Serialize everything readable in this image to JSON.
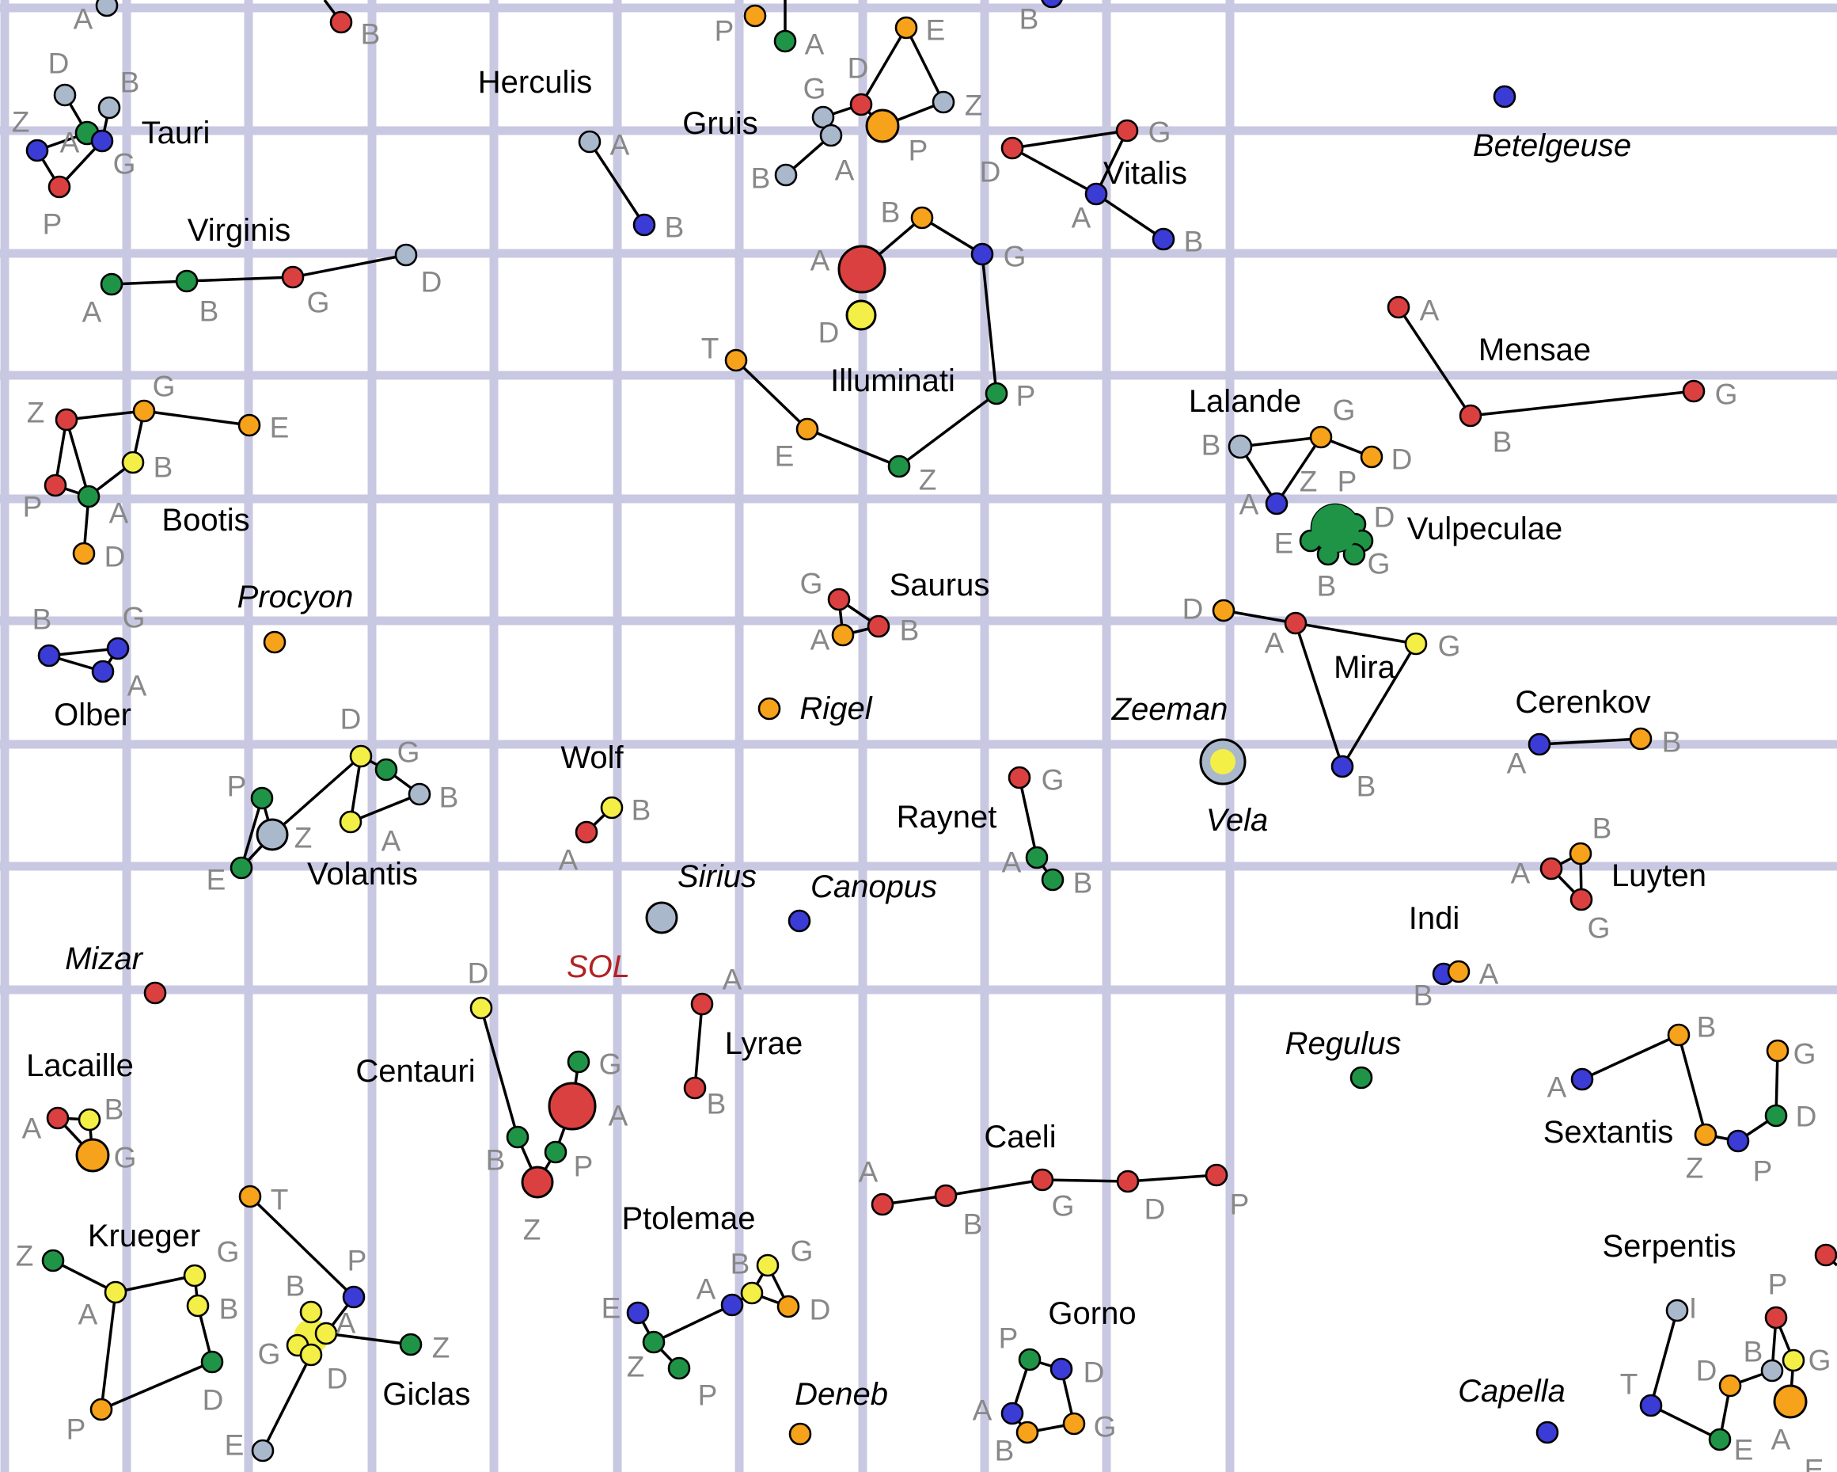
{
  "colors": {
    "red": "#db4040",
    "green": "#1f9447",
    "blue": "#3b3bd6",
    "orange": "#f7a21b",
    "yellow": "#f3ef47",
    "gray": "#aab8cc",
    "grid": "#c8c8e2",
    "home_label": "#b22222"
  },
  "home_system": "SOL",
  "named_stars": [
    "Betelgeuse",
    "Procyon",
    "Rigel",
    "Zeeman",
    "Vela",
    "Sirius",
    "Canopus",
    "Mizar",
    "Regulus",
    "Deneb",
    "Capella"
  ],
  "constellations": [
    {
      "name": "Tauri",
      "stars": [
        {
          "label": "D",
          "color": "gray"
        },
        {
          "label": "B",
          "color": "gray"
        },
        {
          "label": "Z",
          "color": "blue"
        },
        {
          "label": "A",
          "color": "green"
        },
        {
          "label": "G",
          "color": "blue"
        },
        {
          "label": "P",
          "color": "red"
        }
      ]
    },
    {
      "name": "Herculis",
      "stars": [
        {
          "label": "A",
          "color": "gray"
        },
        {
          "label": "B",
          "color": "blue"
        }
      ]
    },
    {
      "name": "Gruis",
      "stars": [
        {
          "label": "E",
          "color": "orange"
        },
        {
          "label": "D",
          "color": "red"
        },
        {
          "label": "Z",
          "color": "gray"
        },
        {
          "label": "G",
          "color": "gray"
        },
        {
          "label": "P",
          "color": "orange"
        },
        {
          "label": "A",
          "color": "gray"
        },
        {
          "label": "B",
          "color": "gray"
        }
      ]
    },
    {
      "name": "Vitalis",
      "stars": [
        {
          "label": "D",
          "color": "red"
        },
        {
          "label": "G",
          "color": "red"
        },
        {
          "label": "A",
          "color": "blue"
        },
        {
          "label": "B",
          "color": "blue"
        }
      ]
    },
    {
      "name": "Virginis",
      "stars": [
        {
          "label": "A",
          "color": "green"
        },
        {
          "label": "B",
          "color": "green"
        },
        {
          "label": "G",
          "color": "red"
        },
        {
          "label": "D",
          "color": "gray"
        }
      ]
    },
    {
      "name": "Illuminati",
      "stars": [
        {
          "label": "A",
          "color": "red"
        },
        {
          "label": "D",
          "color": "yellow"
        },
        {
          "label": "B",
          "color": "orange"
        },
        {
          "label": "G",
          "color": "blue"
        },
        {
          "label": "P",
          "color": "green"
        },
        {
          "label": "Z",
          "color": "green"
        },
        {
          "label": "E",
          "color": "orange"
        },
        {
          "label": "T",
          "color": "orange"
        }
      ]
    },
    {
      "name": "Mensae",
      "stars": [
        {
          "label": "A",
          "color": "red"
        },
        {
          "label": "B",
          "color": "red"
        },
        {
          "label": "G",
          "color": "red"
        }
      ]
    },
    {
      "name": "Bootis",
      "stars": [
        {
          "label": "Z",
          "color": "red"
        },
        {
          "label": "G",
          "color": "orange"
        },
        {
          "label": "E",
          "color": "orange"
        },
        {
          "label": "B",
          "color": "yellow"
        },
        {
          "label": "A",
          "color": "green"
        },
        {
          "label": "P",
          "color": "red"
        },
        {
          "label": "D",
          "color": "orange"
        }
      ]
    },
    {
      "name": "Lalande",
      "stars": [
        {
          "label": "B",
          "color": "gray"
        },
        {
          "label": "G",
          "color": "orange"
        },
        {
          "label": "D",
          "color": "orange"
        },
        {
          "label": "A",
          "color": "blue"
        }
      ]
    },
    {
      "name": "Vulpeculae",
      "stars": [
        {
          "label": "Z",
          "color": "green"
        },
        {
          "label": "P",
          "color": "green"
        },
        {
          "label": "D",
          "color": "green"
        },
        {
          "label": "G",
          "color": "green"
        },
        {
          "label": "B",
          "color": "green"
        },
        {
          "label": "E",
          "color": "green"
        }
      ]
    },
    {
      "name": "Olber",
      "stars": [
        {
          "label": "B",
          "color": "blue"
        },
        {
          "label": "G",
          "color": "blue"
        },
        {
          "label": "A",
          "color": "blue"
        }
      ]
    },
    {
      "name": "Saurus",
      "stars": [
        {
          "label": "G",
          "color": "red"
        },
        {
          "label": "A",
          "color": "orange"
        },
        {
          "label": "B",
          "color": "red"
        }
      ]
    },
    {
      "name": "Mira",
      "stars": [
        {
          "label": "D",
          "color": "orange"
        },
        {
          "label": "A",
          "color": "red"
        },
        {
          "label": "G",
          "color": "yellow"
        },
        {
          "label": "B",
          "color": "blue"
        }
      ]
    },
    {
      "name": "Cerenkov",
      "stars": [
        {
          "label": "A",
          "color": "blue"
        },
        {
          "label": "B",
          "color": "orange"
        }
      ]
    },
    {
      "name": "Volantis",
      "stars": [
        {
          "label": "D",
          "color": "yellow"
        },
        {
          "label": "G",
          "color": "green"
        },
        {
          "label": "B",
          "color": "gray"
        },
        {
          "label": "A",
          "color": "yellow"
        },
        {
          "label": "P",
          "color": "green"
        },
        {
          "label": "Z",
          "color": "gray"
        },
        {
          "label": "E",
          "color": "green"
        }
      ]
    },
    {
      "name": "Wolf",
      "stars": [
        {
          "label": "B",
          "color": "yellow"
        },
        {
          "label": "A",
          "color": "red"
        }
      ]
    },
    {
      "name": "Raynet",
      "stars": [
        {
          "label": "G",
          "color": "red"
        },
        {
          "label": "A",
          "color": "green"
        },
        {
          "label": "B",
          "color": "green"
        }
      ]
    },
    {
      "name": "Luyten",
      "stars": [
        {
          "label": "B",
          "color": "orange"
        },
        {
          "label": "A",
          "color": "red"
        },
        {
          "label": "G",
          "color": "red"
        }
      ]
    },
    {
      "name": "Indi",
      "stars": [
        {
          "label": "B",
          "color": "blue"
        },
        {
          "label": "A",
          "color": "orange"
        }
      ]
    },
    {
      "name": "Lyrae",
      "stars": [
        {
          "label": "A",
          "color": "red"
        },
        {
          "label": "B",
          "color": "red"
        }
      ]
    },
    {
      "name": "Centauri",
      "stars": [
        {
          "label": "D",
          "color": "yellow"
        },
        {
          "label": "G",
          "color": "green"
        },
        {
          "label": "A",
          "color": "red"
        },
        {
          "label": "B",
          "color": "green"
        },
        {
          "label": "P",
          "color": "green"
        },
        {
          "label": "Z",
          "color": "red"
        }
      ]
    },
    {
      "name": "Lacaille",
      "stars": [
        {
          "label": "A",
          "color": "red"
        },
        {
          "label": "B",
          "color": "yellow"
        },
        {
          "label": "G",
          "color": "orange"
        }
      ]
    },
    {
      "name": "Caeli",
      "stars": [
        {
          "label": "A",
          "color": "red"
        },
        {
          "label": "B",
          "color": "red"
        },
        {
          "label": "G",
          "color": "red"
        },
        {
          "label": "D",
          "color": "red"
        },
        {
          "label": "P",
          "color": "red"
        }
      ]
    },
    {
      "name": "Sextantis",
      "stars": [
        {
          "label": "A",
          "color": "blue"
        },
        {
          "label": "B",
          "color": "orange"
        },
        {
          "label": "Z",
          "color": "orange"
        },
        {
          "label": "P",
          "color": "blue"
        },
        {
          "label": "D",
          "color": "green"
        },
        {
          "label": "G",
          "color": "orange"
        }
      ]
    },
    {
      "name": "Krueger",
      "stars": [
        {
          "label": "Z",
          "color": "green"
        },
        {
          "label": "A",
          "color": "yellow"
        },
        {
          "label": "G",
          "color": "yellow"
        },
        {
          "label": "B",
          "color": "yellow"
        },
        {
          "label": "D",
          "color": "green"
        },
        {
          "label": "P",
          "color": "orange"
        }
      ]
    },
    {
      "name": "Giclas",
      "stars": [
        {
          "label": "T",
          "color": "orange"
        },
        {
          "label": "P",
          "color": "blue"
        },
        {
          "label": "B",
          "color": "yellow"
        },
        {
          "label": "G",
          "color": "yellow"
        },
        {
          "label": "A",
          "color": "yellow"
        },
        {
          "label": "D",
          "color": "yellow"
        },
        {
          "label": "Z",
          "color": "green"
        },
        {
          "label": "E",
          "color": "gray"
        }
      ]
    },
    {
      "name": "Ptolemae",
      "stars": [
        {
          "label": "E",
          "color": "blue"
        },
        {
          "label": "Z",
          "color": "green"
        },
        {
          "label": "P",
          "color": "green"
        },
        {
          "label": "A",
          "color": "blue"
        },
        {
          "label": "B",
          "color": "yellow"
        },
        {
          "label": "G",
          "color": "yellow"
        },
        {
          "label": "D",
          "color": "orange"
        }
      ]
    },
    {
      "name": "Gorno",
      "stars": [
        {
          "label": "P",
          "color": "green"
        },
        {
          "label": "D",
          "color": "blue"
        },
        {
          "label": "A",
          "color": "blue"
        },
        {
          "label": "G",
          "color": "orange"
        },
        {
          "label": "B",
          "color": "orange"
        }
      ]
    },
    {
      "name": "Serpentis",
      "stars": [
        {
          "label": "I",
          "color": "gray"
        },
        {
          "label": "T",
          "color": "blue"
        },
        {
          "label": "E",
          "color": "green"
        },
        {
          "label": "P",
          "color": "red"
        },
        {
          "label": "B",
          "color": "gray"
        },
        {
          "label": "G",
          "color": "yellow"
        },
        {
          "label": "D",
          "color": "orange"
        },
        {
          "label": "A",
          "color": "orange"
        }
      ]
    }
  ],
  "edge_labels": [
    "A",
    "B",
    "P",
    "A",
    "B",
    "E"
  ]
}
